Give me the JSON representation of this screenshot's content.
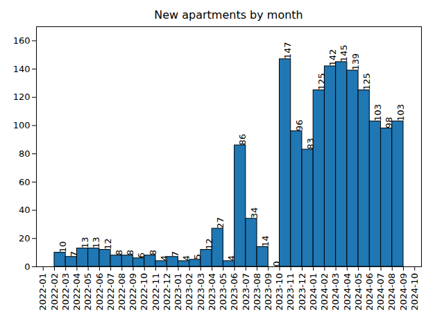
{
  "chart_data": {
    "type": "histogram",
    "title": "New apartments by month",
    "bins": [
      "2022-01",
      "2022-02",
      "2022-03",
      "2022-04",
      "2022-05",
      "2022-06",
      "2022-07",
      "2022-08",
      "2022-09",
      "2022-10",
      "2022-11",
      "2022-12",
      "2023-01",
      "2023-02",
      "2023-03",
      "2023-04",
      "2023-05",
      "2023-06",
      "2023-07",
      "2023-08",
      "2023-09",
      "2023-10",
      "2023-11",
      "2023-12",
      "2024-01",
      "2024-02",
      "2024-03",
      "2024-04",
      "2024-05",
      "2024-06",
      "2024-07",
      "2024-08",
      "2024-09",
      "2024-10"
    ],
    "values": [
      null,
      10,
      7,
      13,
      13,
      12,
      8,
      8,
      6,
      8,
      4,
      7,
      4,
      5,
      12,
      27,
      4,
      86,
      34,
      14,
      0,
      147,
      96,
      83,
      125,
      142,
      145,
      139,
      125,
      103,
      98,
      103,
      null
    ],
    "color": "#1f77b4",
    "ylim": [
      0,
      170
    ],
    "yticks": [
      0,
      20,
      40,
      60,
      80,
      100,
      120,
      140,
      160
    ],
    "grid": false,
    "data_labels": true
  }
}
